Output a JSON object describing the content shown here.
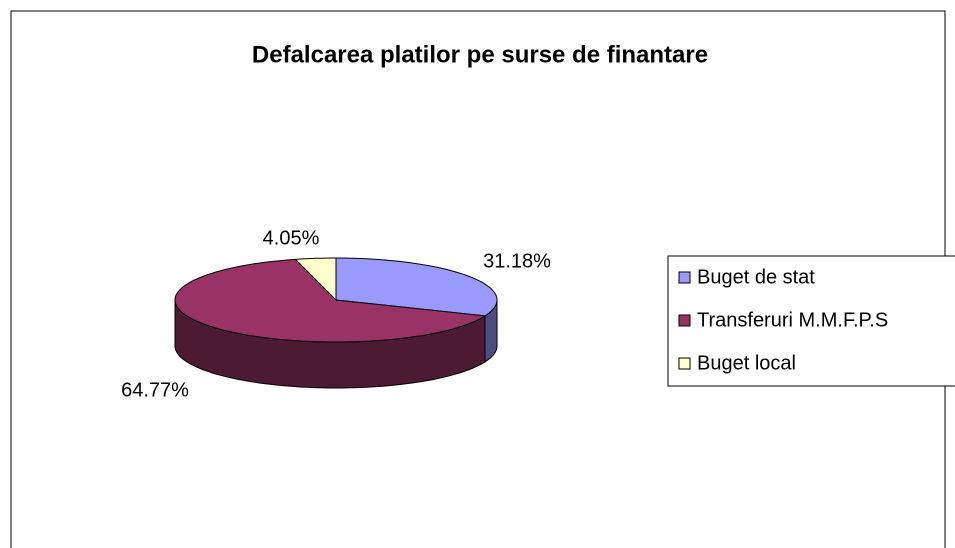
{
  "chart_data": {
    "type": "pie",
    "title": "Defalcarea platilor  pe surse de finantare",
    "categories": [
      "Buget de stat",
      "Transferuri M.M.F.P.S",
      "Buget local"
    ],
    "values": [
      31.18,
      64.77,
      4.05
    ],
    "value_labels": [
      "31.18%",
      "64.77%",
      "4.05%"
    ],
    "colors": [
      "#9999ff",
      "#993366",
      "#ffffcc"
    ],
    "legend": "right"
  }
}
